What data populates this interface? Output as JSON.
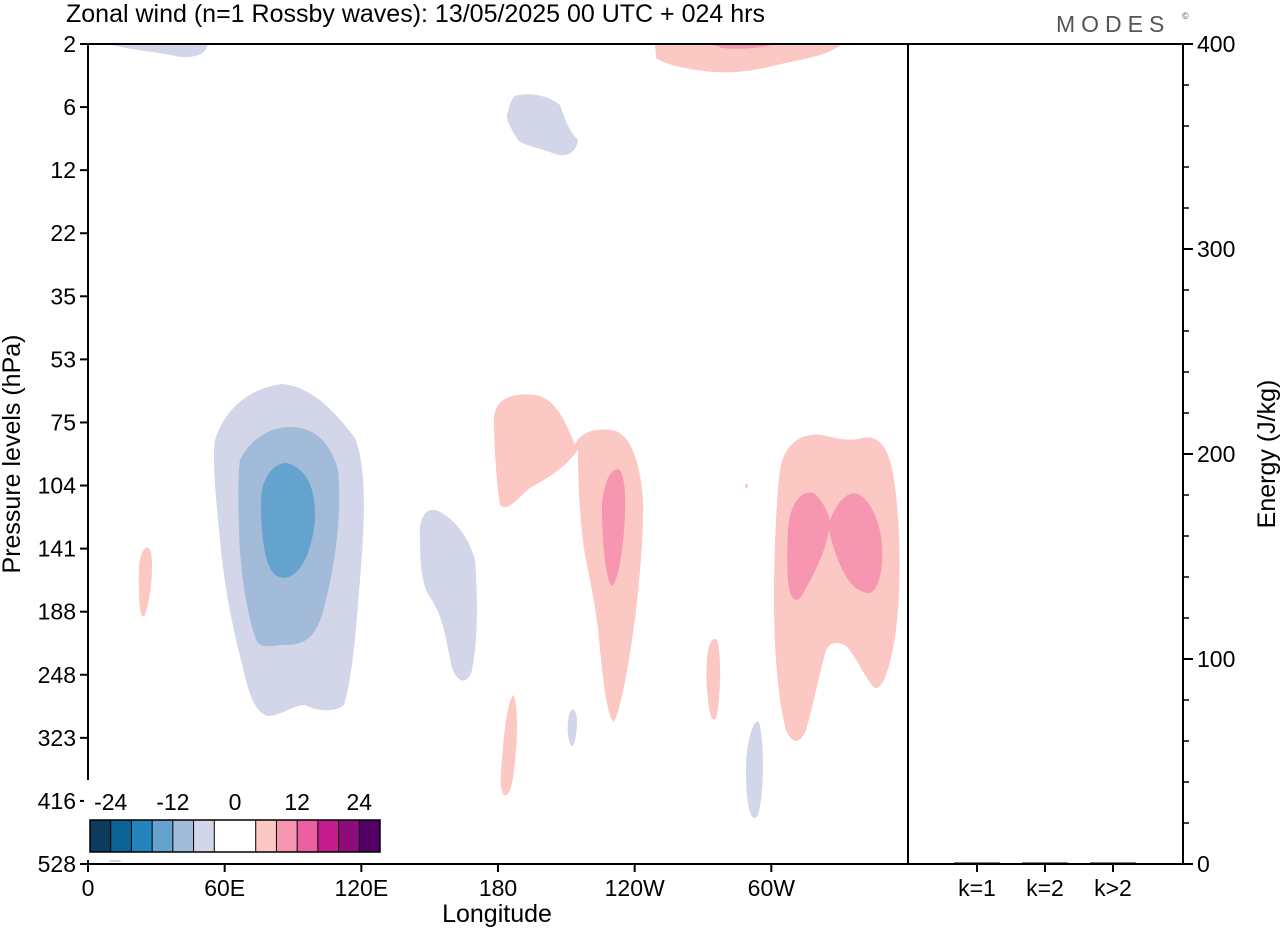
{
  "chart_data": {
    "type": "heatmap",
    "title": "Zonal wind (n=1 Rossby waves):  13/05/2025  00 UTC  + 024 hrs",
    "logo": "MODES",
    "logo_mark": "©",
    "xlabel": "Longitude",
    "ylabel": "Pressure levels (hPa)",
    "y2label": "Energy (J/kg)",
    "x_ticks": [
      "0",
      "60E",
      "120E",
      "180",
      "120W",
      "60W"
    ],
    "y_ticks": [
      "2",
      "6",
      "12",
      "22",
      "35",
      "53",
      "75",
      "104",
      "141",
      "188",
      "248",
      "323",
      "416",
      "528"
    ],
    "energy_axis": {
      "ticks": [
        "0",
        "100",
        "200",
        "300",
        "400"
      ],
      "range": [
        0,
        400
      ],
      "major_step": 100,
      "minor_step": 20
    },
    "energy_bars": {
      "categories": [
        "k=1",
        "k=2",
        "k>2"
      ],
      "values": [
        0.4,
        0.3,
        0.2
      ]
    },
    "colorbar": {
      "labels": [
        "-24",
        "-12",
        "0",
        "12",
        "24"
      ],
      "colors": [
        "#0b3c5d",
        "#0d6396",
        "#2684bd",
        "#64a3cd",
        "#a2bbd9",
        "#d3d6e8",
        "#ffffff",
        "#ffffff",
        "#fbc8c4",
        "#f796b0",
        "#eb5fa1",
        "#c51c8c",
        "#8e0c7a",
        "#520066"
      ]
    },
    "legend_position": "bottom-left",
    "grid": false
  }
}
